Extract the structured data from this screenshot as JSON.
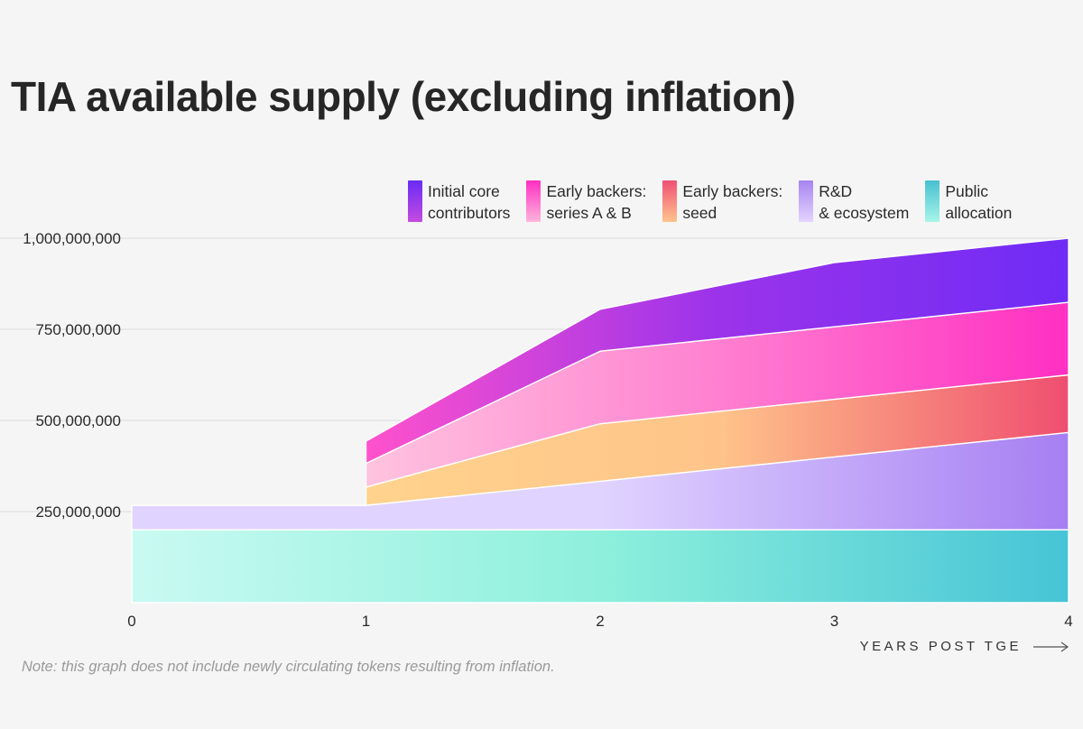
{
  "title": "TIA available supply (excluding inflation)",
  "note": "Note: this graph does not include newly circulating tokens resulting from inflation.",
  "legend": [
    {
      "line1": "Initial core",
      "line2": "contributors",
      "color_top": "#6a2cf5",
      "color_bottom": "#c44be0"
    },
    {
      "line1": "Early backers:",
      "line2": "series A & B",
      "color_top": "#ff2fc2",
      "color_bottom": "#ffb5dc"
    },
    {
      "line1": "Early backers:",
      "line2": "seed",
      "color_top": "#ef4f74",
      "color_bottom": "#ffc48c"
    },
    {
      "line1": "R&D",
      "line2": "& ecosystem",
      "color_top": "#a884f0",
      "color_bottom": "#e3d4ff"
    },
    {
      "line1": "Public",
      "line2": "allocation",
      "color_top": "#47c0d1",
      "color_bottom": "#a8f5e8"
    }
  ],
  "chart_data": {
    "type": "area",
    "stacked": true,
    "x": [
      0,
      1,
      2,
      3,
      4
    ],
    "xlabel": "YEARS POST TGE",
    "x_ticks": [
      "0",
      "1",
      "2",
      "3",
      "4"
    ],
    "y_ticks": [
      "250,000,000",
      "500,000,000",
      "750,000,000",
      "1,000,000,000"
    ],
    "ylim": [
      0,
      1000000000
    ],
    "grid": true,
    "legend_position": "top-right",
    "series": [
      {
        "name": "Public allocation",
        "values": [
          200000000,
          200000000,
          200000000,
          200000000,
          200000000
        ],
        "colors": [
          "#c9faf2",
          "#8ef0dc",
          "#46c4d6"
        ]
      },
      {
        "name": "R&D & ecosystem",
        "values": [
          67000000,
          67000000,
          133000000,
          200000000,
          267000000
        ],
        "colors": [
          "#e0d3ff",
          "#e0d3ff",
          "#a67ff2"
        ]
      },
      {
        "name": "Early backers: seed",
        "values": [
          0,
          50000000,
          158000000,
          158000000,
          158000000
        ],
        "colors": [
          "#ffd38d",
          "#ffc48a",
          "#ef4e70"
        ]
      },
      {
        "name": "Early backers: series A & B",
        "values": [
          0,
          65000000,
          199000000,
          199000000,
          199000000
        ],
        "colors": [
          "#ffc3df",
          "#ff80d0",
          "#ff2fc2"
        ]
      },
      {
        "name": "Initial core contributors",
        "values": [
          0,
          61000000,
          115000000,
          176000000,
          176000000
        ],
        "colors": [
          "#ff52cc",
          "#9b33ea",
          "#6f2cf5"
        ]
      }
    ]
  }
}
